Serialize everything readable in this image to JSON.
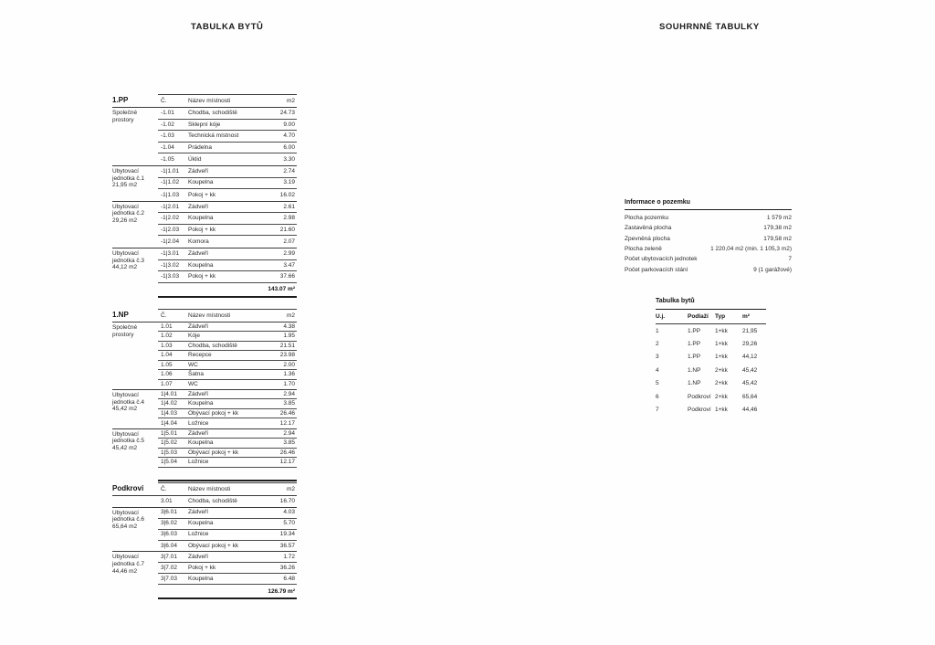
{
  "titles": {
    "left": "TABULKA BYTŮ",
    "right": "SOUHRNNÉ TABULKY"
  },
  "room_tables": [
    {
      "floor": "1.PP",
      "headers": {
        "num": "Č.",
        "name": "Název místnosti",
        "area": "m2"
      },
      "sections": [
        {
          "label_lines": [
            "Společné",
            "prostory"
          ],
          "rows": [
            {
              "num": "-1.01",
              "name": "Chodba, schodiště",
              "area": "24.73"
            },
            {
              "num": "-1.02",
              "name": "Sklepní kóje",
              "area": "9.00"
            },
            {
              "num": "-1.03",
              "name": "Technická místnost",
              "area": "4.70"
            },
            {
              "num": "-1.04",
              "name": "Prádelna",
              "area": "6.00"
            },
            {
              "num": "-1.05",
              "name": "Úklid",
              "area": "3.30"
            }
          ]
        },
        {
          "label_lines": [
            "Ubytovací",
            "jednotka č.1",
            "21,95 m2"
          ],
          "rows": [
            {
              "num": "-1|1.01",
              "name": "Zádveří",
              "area": "2.74"
            },
            {
              "num": "-1|1.02",
              "name": "Koupelna",
              "area": "3.19"
            },
            {
              "num": "-1|1.03",
              "name": "Pokoj + kk",
              "area": "16.02"
            }
          ]
        },
        {
          "label_lines": [
            "Ubytovací",
            "jednotka č.2",
            "29,26 m2"
          ],
          "rows": [
            {
              "num": "-1|2.01",
              "name": "Zádveří",
              "area": "2.61"
            },
            {
              "num": "-1|2.02",
              "name": "Koupelna",
              "area": "2.98"
            },
            {
              "num": "-1|2.03",
              "name": "Pokoj + kk",
              "area": "21.60"
            },
            {
              "num": "-1|2.04",
              "name": "Komora",
              "area": "2.07"
            }
          ]
        },
        {
          "label_lines": [
            "Ubytovací",
            "jednotka č.3",
            "44,12 m2"
          ],
          "rows": [
            {
              "num": "-1|3.01",
              "name": "Zádveří",
              "area": "2.99"
            },
            {
              "num": "-1|3.02",
              "name": "Koupelna",
              "area": "3.47"
            },
            {
              "num": "-1|3.03",
              "name": "Pokoj + kk",
              "area": "37.66"
            }
          ]
        }
      ],
      "total": "143.07 m²"
    },
    {
      "floor": "1.NP",
      "headers": {
        "num": "Č.",
        "name": "Název místnosti",
        "area": "m2"
      },
      "sections": [
        {
          "label_lines": [
            "Společné",
            "prostory"
          ],
          "rows": [
            {
              "num": "1.01",
              "name": "Zádveří",
              "area": "4.38"
            },
            {
              "num": "1.02",
              "name": "Kóje",
              "area": "1.95"
            },
            {
              "num": "1.03",
              "name": "Chodba, schodiště",
              "area": "21.51"
            },
            {
              "num": "1.04",
              "name": "Recepce",
              "area": "23.98"
            },
            {
              "num": "1.05",
              "name": "WC",
              "area": "2.00"
            },
            {
              "num": "1.06",
              "name": "Šatna",
              "area": "1.36"
            },
            {
              "num": "1.07",
              "name": "WC",
              "area": "1.70"
            }
          ]
        },
        {
          "label_lines": [
            "Ubytovací",
            "jednotka č.4",
            "45,42 m2"
          ],
          "rows": [
            {
              "num": "1|4.01",
              "name": "Zádveří",
              "area": "2.94"
            },
            {
              "num": "1|4.02",
              "name": "Koupelna",
              "area": "3.85"
            },
            {
              "num": "1|4.03",
              "name": "Obývací pokoj + kk",
              "area": "26.46"
            },
            {
              "num": "1|4.04",
              "name": "Ložnice",
              "area": "12.17"
            }
          ]
        },
        {
          "label_lines": [
            "Ubytovací",
            "jednotka č.5",
            "45,42 m2"
          ],
          "rows": [
            {
              "num": "1|5.01",
              "name": "Zádveří",
              "area": "2.94"
            },
            {
              "num": "1|5.02",
              "name": "Koupelna",
              "area": "3.85"
            },
            {
              "num": "1|5.03",
              "name": "Obývací pokoj + kk",
              "area": "26.46"
            },
            {
              "num": "1|5.04",
              "name": "Ložnice",
              "area": "12.17"
            }
          ]
        }
      ],
      "total": ""
    },
    {
      "floor": "Podkroví",
      "headers": {
        "num": "Č.",
        "name": "Název místnosti",
        "area": "m2"
      },
      "sections": [
        {
          "label_lines": [],
          "rows": [
            {
              "num": "3.01",
              "name": "Chodba, schodiště",
              "area": "16.70"
            }
          ]
        },
        {
          "label_lines": [
            "Ubytovací",
            "jednotka č.6",
            "65,64 m2"
          ],
          "rows": [
            {
              "num": "3|6.01",
              "name": "Zádveří",
              "area": "4.03"
            },
            {
              "num": "3|6.02",
              "name": "Koupelna",
              "area": "5.70"
            },
            {
              "num": "3|6.03",
              "name": "Ložnice",
              "area": "19.34"
            },
            {
              "num": "3|6.04",
              "name": "Obývací pokoj + kk",
              "area": "36.57"
            }
          ]
        },
        {
          "label_lines": [
            "Ubytovací",
            "jednotka č.7",
            "44,46 m2"
          ],
          "rows": [
            {
              "num": "3|7.01",
              "name": "Zádveří",
              "area": "1.72"
            },
            {
              "num": "3|7.02",
              "name": "Pokoj + kk",
              "area": "36.26"
            },
            {
              "num": "3|7.03",
              "name": "Koupelna",
              "area": "6.48"
            }
          ]
        }
      ],
      "total": "126.79 m²"
    }
  ],
  "land_info": {
    "title": "Informace o pozemku",
    "rows": [
      {
        "label": "Plocha pozemku",
        "value": "1 579 m2"
      },
      {
        "label": "Zastavěná plocha",
        "value": "179,38 m2"
      },
      {
        "label": "Zpevněná plocha",
        "value": "179,58 m2"
      },
      {
        "label": "Plocha zeleně",
        "value": "1 220,04 m2 (min. 1 105,3 m2)"
      },
      {
        "label": "Počet ubytovacích jednotek",
        "value": "7"
      },
      {
        "label": "Počet parkovacích stání",
        "value": "9 (1 garážové)"
      }
    ]
  },
  "flats_table": {
    "title": "Tabulka bytů",
    "headers": [
      "U.j.",
      "Podlaží",
      "Typ",
      "m²"
    ],
    "rows": [
      [
        "1",
        "1.PP",
        "1+kk",
        "21,95"
      ],
      [
        "2",
        "1.PP",
        "1+kk",
        "29,26"
      ],
      [
        "3",
        "1.PP",
        "1+kk",
        "44,12"
      ],
      [
        "4",
        "1.NP",
        "2+kk",
        "45,42"
      ],
      [
        "5",
        "1.NP",
        "2+kk",
        "45,42"
      ],
      [
        "6",
        "Podkroví",
        "2+kk",
        "65,64"
      ],
      [
        "7",
        "Podkroví",
        "1+kk",
        "44,46"
      ]
    ]
  }
}
